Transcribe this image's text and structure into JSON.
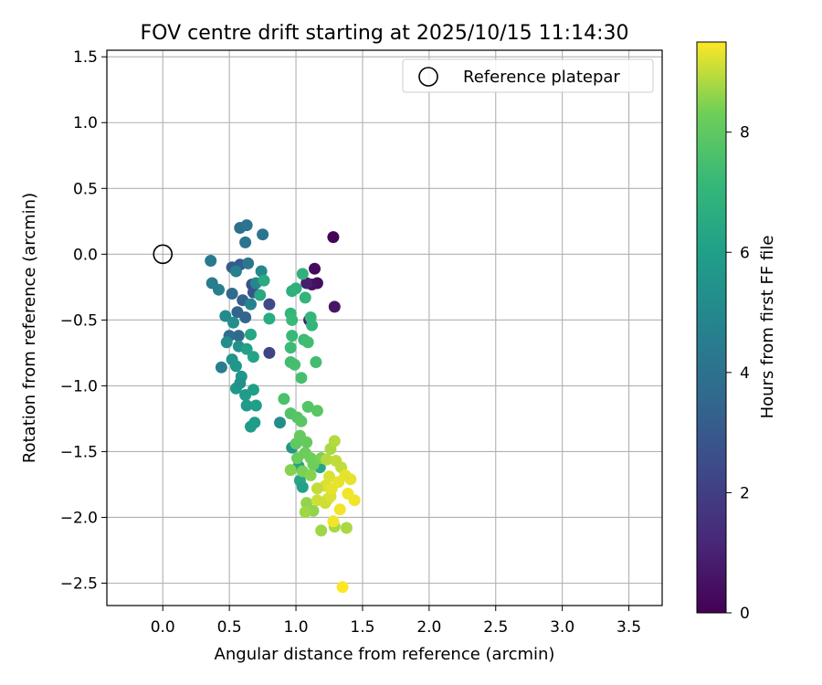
{
  "chart_data": {
    "type": "scatter",
    "title": "FOV centre drift starting at 2025/10/15 11:14:30",
    "xlabel": "Angular distance from reference (arcmin)",
    "ylabel": "Rotation from reference (arcmin)",
    "xlim": [
      -0.42,
      3.75
    ],
    "ylim": [
      -2.67,
      1.55
    ],
    "xticks": [
      0.0,
      0.5,
      1.0,
      1.5,
      2.0,
      2.5,
      3.0,
      3.5
    ],
    "xtick_labels": [
      "0.0",
      "0.5",
      "1.0",
      "1.5",
      "2.0",
      "2.5",
      "3.0",
      "3.5"
    ],
    "yticks": [
      1.5,
      1.0,
      0.5,
      0.0,
      -0.5,
      -1.0,
      -1.5,
      -2.0,
      -2.5
    ],
    "ytick_labels": [
      "1.5",
      "1.0",
      "0.5",
      "0.0",
      "−0.5",
      "−1.0",
      "−1.5",
      "−2.0",
      "−2.5"
    ],
    "grid": true,
    "legend": {
      "placement": "top-right",
      "entries": [
        "Reference platepar"
      ]
    },
    "reference_point": {
      "name": "Reference platepar",
      "x": 0.0,
      "y": 0.0
    },
    "colorbar": {
      "label": "Hours from first FF file",
      "range": [
        0,
        9.5
      ],
      "ticks": [
        0,
        2,
        4,
        6,
        8
      ],
      "tick_labels": [
        "0",
        "2",
        "4",
        "6",
        "8"
      ],
      "colormap": "viridis"
    },
    "points": [
      [
        1.28,
        0.13,
        0.1
      ],
      [
        1.14,
        -0.11,
        0.3
      ],
      [
        1.16,
        -0.22,
        0.4
      ],
      [
        1.12,
        -0.23,
        0.5
      ],
      [
        1.29,
        -0.4,
        0.6
      ],
      [
        1.1,
        -0.5,
        0.8
      ],
      [
        1.08,
        -0.22,
        0.9
      ],
      [
        0.8,
        -0.75,
        2.2
      ],
      [
        0.8,
        -0.38,
        2.4
      ],
      [
        0.67,
        -0.23,
        2.6
      ],
      [
        0.68,
        -0.29,
        2.8
      ],
      [
        0.58,
        -0.08,
        3.0
      ],
      [
        0.52,
        -0.1,
        3.1
      ],
      [
        0.6,
        -0.35,
        3.3
      ],
      [
        0.56,
        -0.44,
        3.4
      ],
      [
        0.62,
        -0.48,
        3.5
      ],
      [
        0.57,
        -0.62,
        3.6
      ],
      [
        0.52,
        -0.3,
        3.7
      ],
      [
        0.5,
        -0.62,
        3.8
      ],
      [
        0.58,
        0.2,
        3.9
      ],
      [
        0.63,
        0.22,
        4.0
      ],
      [
        0.75,
        0.15,
        4.1
      ],
      [
        0.62,
        0.09,
        4.2
      ],
      [
        0.64,
        -0.07,
        4.3
      ],
      [
        0.36,
        -0.05,
        4.4
      ],
      [
        0.37,
        -0.22,
        4.5
      ],
      [
        0.42,
        -0.27,
        4.6
      ],
      [
        0.55,
        -0.13,
        4.7
      ],
      [
        0.66,
        -0.38,
        4.8
      ],
      [
        0.7,
        -0.22,
        4.9
      ],
      [
        0.74,
        -0.13,
        5.0
      ],
      [
        0.47,
        -0.47,
        5.1
      ],
      [
        0.48,
        -0.67,
        5.2
      ],
      [
        0.53,
        -0.52,
        5.3
      ],
      [
        0.57,
        -0.7,
        5.4
      ],
      [
        0.52,
        -0.8,
        5.5
      ],
      [
        0.55,
        -0.85,
        5.6
      ],
      [
        0.59,
        -0.93,
        5.6
      ],
      [
        0.55,
        -1.02,
        5.7
      ],
      [
        0.62,
        -1.07,
        5.8
      ],
      [
        0.63,
        -1.15,
        5.8
      ],
      [
        0.66,
        -1.31,
        5.9
      ],
      [
        0.69,
        -1.28,
        5.9
      ],
      [
        0.7,
        -1.15,
        6.0
      ],
      [
        0.68,
        -1.03,
        6.0
      ],
      [
        0.63,
        -0.72,
        6.1
      ],
      [
        0.68,
        -0.78,
        6.2
      ],
      [
        0.66,
        -0.61,
        6.3
      ],
      [
        0.73,
        -0.31,
        6.4
      ],
      [
        0.76,
        -0.2,
        6.5
      ],
      [
        0.44,
        -0.86,
        4.5
      ],
      [
        0.58,
        -0.98,
        5.4
      ],
      [
        0.88,
        -1.28,
        5.2
      ],
      [
        0.97,
        -1.47,
        5.6
      ],
      [
        1.02,
        -1.61,
        6.2
      ],
      [
        1.03,
        -1.72,
        6.3
      ],
      [
        1.05,
        -1.77,
        6.1
      ],
      [
        1.18,
        -1.62,
        6.3
      ],
      [
        0.8,
        -0.49,
        6.6
      ],
      [
        0.97,
        -0.28,
        6.7
      ],
      [
        1.0,
        -0.26,
        6.8
      ],
      [
        1.05,
        -0.15,
        6.9
      ],
      [
        1.07,
        -0.33,
        7.0
      ],
      [
        1.12,
        -0.54,
        7.0
      ],
      [
        1.11,
        -0.48,
        7.1
      ],
      [
        0.96,
        -0.45,
        7.1
      ],
      [
        0.97,
        -0.5,
        7.2
      ],
      [
        0.97,
        -0.62,
        7.2
      ],
      [
        1.06,
        -0.65,
        7.3
      ],
      [
        0.96,
        -0.71,
        7.3
      ],
      [
        1.09,
        -0.67,
        7.4
      ],
      [
        1.15,
        -0.82,
        7.4
      ],
      [
        0.96,
        -0.82,
        7.4
      ],
      [
        0.99,
        -0.84,
        7.5
      ],
      [
        1.04,
        -0.94,
        7.5
      ],
      [
        0.91,
        -1.1,
        7.6
      ],
      [
        0.96,
        -1.21,
        7.7
      ],
      [
        1.01,
        -1.24,
        7.8
      ],
      [
        1.09,
        -1.16,
        7.8
      ],
      [
        1.16,
        -1.19,
        7.9
      ],
      [
        1.04,
        -1.27,
        7.9
      ],
      [
        1.0,
        -1.44,
        8.0
      ],
      [
        1.03,
        -1.38,
        8.1
      ],
      [
        1.08,
        -1.43,
        8.1
      ],
      [
        1.01,
        -1.55,
        8.2
      ],
      [
        1.07,
        -1.51,
        8.2
      ],
      [
        1.11,
        -1.55,
        8.3
      ],
      [
        1.13,
        -1.6,
        8.3
      ],
      [
        1.19,
        -1.55,
        8.4
      ],
      [
        1.05,
        -1.65,
        8.4
      ],
      [
        0.96,
        -1.64,
        8.5
      ],
      [
        1.11,
        -1.68,
        8.5
      ],
      [
        1.08,
        -1.89,
        8.6
      ],
      [
        1.13,
        -1.95,
        8.6
      ],
      [
        1.07,
        -1.96,
        8.7
      ],
      [
        1.19,
        -2.1,
        8.7
      ],
      [
        1.29,
        -2.07,
        8.8
      ],
      [
        1.38,
        -2.08,
        8.8
      ],
      [
        1.26,
        -1.48,
        8.8
      ],
      [
        1.29,
        -1.42,
        8.9
      ],
      [
        1.23,
        -1.56,
        8.9
      ],
      [
        1.3,
        -1.57,
        9.0
      ],
      [
        1.34,
        -1.62,
        9.0
      ],
      [
        1.16,
        -1.87,
        9.1
      ],
      [
        1.22,
        -1.89,
        9.1
      ],
      [
        1.24,
        -1.86,
        9.1
      ],
      [
        1.26,
        -1.84,
        9.2
      ],
      [
        1.22,
        -1.76,
        9.2
      ],
      [
        1.25,
        -1.69,
        9.2
      ],
      [
        1.32,
        -1.73,
        9.3
      ],
      [
        1.37,
        -1.68,
        9.3
      ],
      [
        1.41,
        -1.71,
        9.3
      ],
      [
        1.39,
        -1.82,
        9.4
      ],
      [
        1.44,
        -1.87,
        9.4
      ],
      [
        1.33,
        -1.94,
        9.4
      ],
      [
        1.28,
        -2.03,
        9.4
      ],
      [
        1.35,
        -2.53,
        9.5
      ],
      [
        1.16,
        -1.78,
        9.0
      ],
      [
        1.27,
        -1.78,
        9.3
      ]
    ]
  }
}
